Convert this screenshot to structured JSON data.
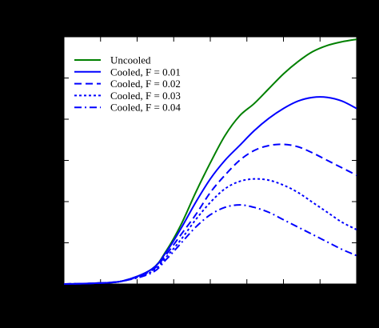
{
  "chart_data": {
    "type": "line",
    "title": "",
    "xlabel": "",
    "ylabel": "",
    "x_tick_count": 9,
    "y_tick_count": 7,
    "xlim": [
      0,
      1
    ],
    "ylim": [
      0,
      1
    ],
    "grid": false,
    "legend_position": "top-left",
    "series": [
      {
        "name": "Uncooled",
        "color": "#008000",
        "dash": "solid",
        "x": [
          0.0,
          0.1,
          0.2,
          0.3,
          0.35,
          0.4,
          0.45,
          0.5,
          0.55,
          0.6,
          0.65,
          0.7,
          0.75,
          0.8,
          0.85,
          0.9,
          0.95,
          1.0
        ],
        "y": [
          0.0,
          0.003,
          0.012,
          0.06,
          0.135,
          0.24,
          0.37,
          0.49,
          0.6,
          0.68,
          0.73,
          0.79,
          0.85,
          0.9,
          0.94,
          0.965,
          0.98,
          0.99
        ]
      },
      {
        "name": "Cooled, F = 0.01",
        "color": "#0000ff",
        "dash": "solid",
        "x": [
          0.0,
          0.1,
          0.2,
          0.3,
          0.35,
          0.4,
          0.45,
          0.5,
          0.55,
          0.6,
          0.65,
          0.7,
          0.75,
          0.8,
          0.85,
          0.9,
          0.95,
          1.0
        ],
        "y": [
          0.0,
          0.003,
          0.012,
          0.06,
          0.13,
          0.225,
          0.33,
          0.425,
          0.5,
          0.56,
          0.62,
          0.67,
          0.71,
          0.74,
          0.755,
          0.755,
          0.74,
          0.71
        ]
      },
      {
        "name": "Cooled, F = 0.02",
        "color": "#0000ff",
        "dash": "dashed",
        "x": [
          0.0,
          0.1,
          0.2,
          0.3,
          0.35,
          0.4,
          0.45,
          0.5,
          0.55,
          0.6,
          0.65,
          0.7,
          0.75,
          0.8,
          0.85,
          0.9,
          0.95,
          1.0
        ],
        "y": [
          0.0,
          0.003,
          0.012,
          0.055,
          0.12,
          0.2,
          0.28,
          0.37,
          0.44,
          0.5,
          0.54,
          0.56,
          0.565,
          0.555,
          0.53,
          0.5,
          0.47,
          0.44
        ]
      },
      {
        "name": "Cooled, F = 0.03",
        "color": "#0000ff",
        "dash": "dotted",
        "x": [
          0.0,
          0.1,
          0.2,
          0.3,
          0.35,
          0.4,
          0.45,
          0.5,
          0.55,
          0.6,
          0.65,
          0.7,
          0.75,
          0.8,
          0.85,
          0.9,
          0.95,
          1.0
        ],
        "y": [
          0.0,
          0.003,
          0.012,
          0.05,
          0.11,
          0.18,
          0.26,
          0.33,
          0.385,
          0.415,
          0.425,
          0.42,
          0.4,
          0.37,
          0.33,
          0.29,
          0.25,
          0.22
        ]
      },
      {
        "name": "Cooled, F = 0.04",
        "color": "#0000ff",
        "dash": "dashdot",
        "x": [
          0.0,
          0.1,
          0.2,
          0.3,
          0.35,
          0.4,
          0.45,
          0.5,
          0.55,
          0.6,
          0.65,
          0.7,
          0.75,
          0.8,
          0.85,
          0.9,
          0.95,
          1.0
        ],
        "y": [
          0.0,
          0.003,
          0.012,
          0.045,
          0.1,
          0.165,
          0.23,
          0.28,
          0.31,
          0.32,
          0.31,
          0.29,
          0.26,
          0.23,
          0.2,
          0.17,
          0.14,
          0.115
        ]
      }
    ]
  }
}
